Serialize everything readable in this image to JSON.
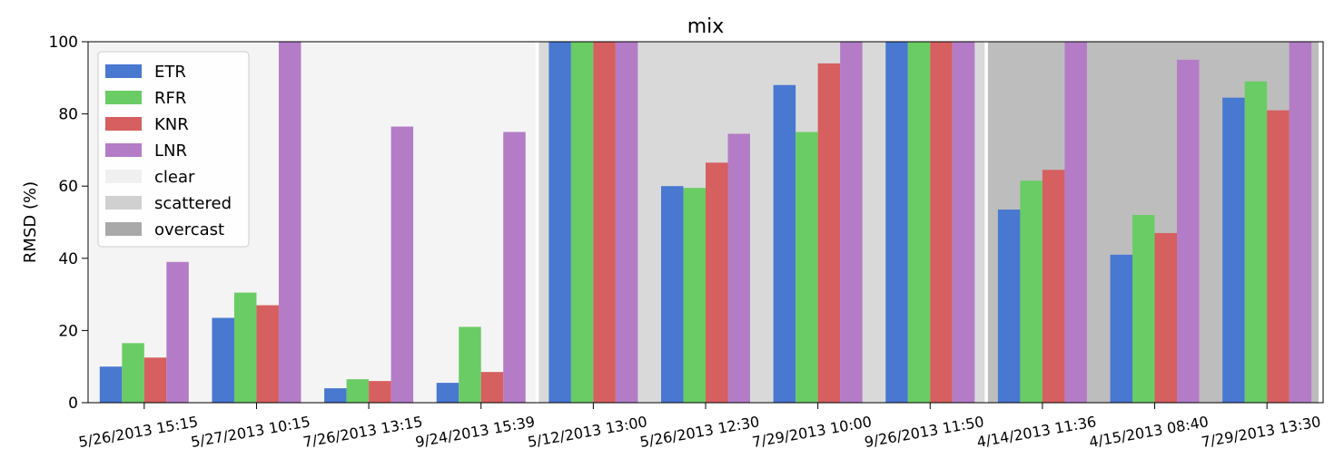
{
  "chart_data": {
    "type": "bar",
    "title": "mix",
    "xlabel": "",
    "ylabel": "RMSD (%)",
    "ylim": [
      0,
      100
    ],
    "yticks": [
      0,
      20,
      40,
      60,
      80,
      100
    ],
    "grid": false,
    "legend_position": "top-left",
    "categories": [
      "5/26/2013 15:15",
      "5/27/2013 10:15",
      "7/26/2013 13:15",
      "9/24/2013 15:39",
      "5/12/2013 13:00",
      "5/26/2013 12:30",
      "7/29/2013 10:00",
      "9/26/2013 11:50",
      "4/14/2013 11:36",
      "4/15/2013 08:40",
      "7/29/2013 13:30"
    ],
    "series": [
      {
        "name": "ETR",
        "color": "#4878d0",
        "values": [
          10,
          23.5,
          4,
          5.5,
          100,
          60,
          88,
          100,
          53.5,
          41,
          84.5
        ]
      },
      {
        "name": "RFR",
        "color": "#6acc64",
        "values": [
          16.5,
          30.5,
          6.5,
          21,
          100,
          59.5,
          75,
          100,
          61.5,
          52,
          89
        ]
      },
      {
        "name": "KNR",
        "color": "#d65f5f",
        "values": [
          12.5,
          27,
          6,
          8.5,
          100,
          66.5,
          94,
          100,
          64.5,
          47,
          81
        ]
      },
      {
        "name": "LNR",
        "color": "#b47cc7",
        "values": [
          39,
          100,
          76.5,
          75,
          100,
          74.5,
          100,
          100,
          100,
          95,
          100
        ]
      }
    ],
    "sky_conditions": [
      {
        "name": "clear",
        "color": "#f4f4f4",
        "legend_color": "#f0f0f0",
        "categories": [
          0,
          3
        ]
      },
      {
        "name": "scattered",
        "color": "#d9d9d9",
        "legend_color": "#d0d0d0",
        "categories": [
          4,
          7
        ]
      },
      {
        "name": "overcast",
        "color": "#bdbdbd",
        "legend_color": "#a9a9a9",
        "categories": [
          8,
          10
        ]
      }
    ]
  }
}
